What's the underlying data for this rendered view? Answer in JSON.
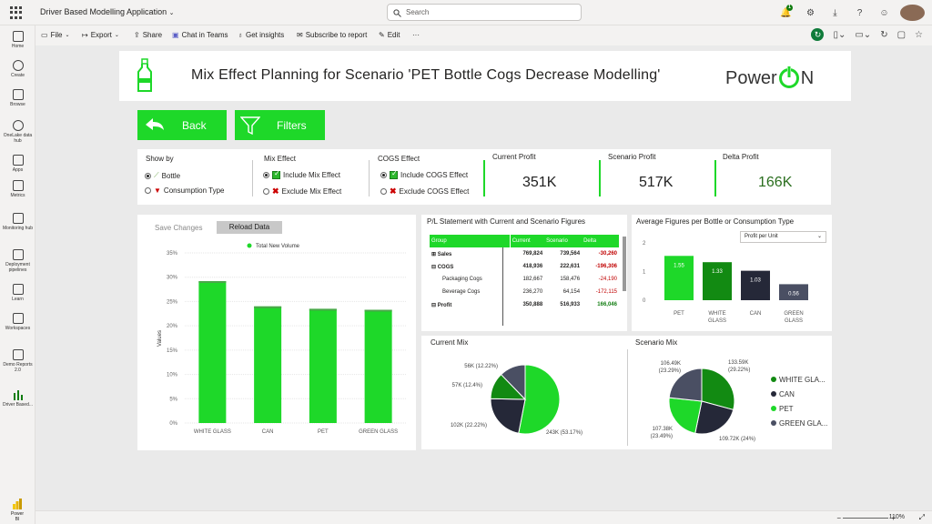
{
  "app": {
    "title": "Driver Based Modelling Application",
    "search_placeholder": "Search",
    "notification_count": "1"
  },
  "nav": [
    {
      "label": "Home",
      "icon": "home-icon"
    },
    {
      "label": "Create",
      "icon": "plus-circle-icon"
    },
    {
      "label": "Browse",
      "icon": "folder-icon"
    },
    {
      "label": "OneLake data hub",
      "icon": "onelake-icon"
    },
    {
      "label": "Apps",
      "icon": "apps-icon"
    },
    {
      "label": "Metrics",
      "icon": "trophy-icon"
    },
    {
      "label": "Monitoring hub",
      "icon": "monitor-icon"
    },
    {
      "label": "Deployment pipelines",
      "icon": "rocket-icon"
    },
    {
      "label": "Learn",
      "icon": "book-icon"
    },
    {
      "label": "Workspaces",
      "icon": "workspaces-icon"
    },
    {
      "label": "Demo Reports 2.0",
      "icon": "people-icon"
    },
    {
      "label": "Driver Based...",
      "icon": "report-icon"
    }
  ],
  "toolbar": {
    "file": "File",
    "export": "Export",
    "share": "Share",
    "chat": "Chat in Teams",
    "insights": "Get insights",
    "subscribe": "Subscribe to report",
    "edit": "Edit",
    "more": "···"
  },
  "report": {
    "title": "Mix Effect Planning for Scenario 'PET Bottle Cogs Decrease Modelling'",
    "logo_text": "Power",
    "logo_end": "N",
    "back_label": "Back",
    "filters_label": "Filters"
  },
  "filters": {
    "show_by": {
      "title": "Show by",
      "options": [
        "Bottle",
        "Consumption Type"
      ]
    },
    "mix_effect": {
      "title": "Mix Effect",
      "options": [
        "Include Mix Effect",
        "Exclude Mix Effect"
      ]
    },
    "cogs_effect": {
      "title": "COGS Effect",
      "options": [
        "Include COGS Effect",
        "Exclude COGS Effect"
      ]
    }
  },
  "kpis": {
    "current": {
      "label": "Current Profit",
      "value": "351K"
    },
    "scenario": {
      "label": "Scenario Profit",
      "value": "517K"
    },
    "delta": {
      "label": "Delta Profit",
      "value": "166K"
    }
  },
  "volume_panel": {
    "save_label": "Save Changes",
    "reload_label": "Reload Data"
  },
  "pl_statement": {
    "title": "P/L Statement with Current and Scenario Figures",
    "headers": [
      "Group",
      "Current",
      "Scenario",
      "Delta"
    ],
    "rows": [
      {
        "group": "Sales",
        "current": "769,824",
        "scenario": "739,564",
        "delta": "-30,260",
        "bold": true,
        "expand": "⊞"
      },
      {
        "group": "COGS",
        "current": "418,936",
        "scenario": "222,631",
        "delta": "-196,306",
        "bold": true,
        "expand": "⊟"
      },
      {
        "group": "Packaging Cogs",
        "current": "182,667",
        "scenario": "158,476",
        "delta": "-24,190",
        "bold": false,
        "expand": ""
      },
      {
        "group": "Beverage Cogs",
        "current": "236,270",
        "scenario": "64,154",
        "delta": "-172,115",
        "bold": false,
        "expand": ""
      },
      {
        "group": "Profit",
        "current": "350,888",
        "scenario": "516,933",
        "delta": "166,046",
        "bold": true,
        "expand": "⊟"
      }
    ]
  },
  "avg_figures": {
    "title": "Average Figures per Bottle or Consumption Type",
    "dropdown": "Profit per Unit"
  },
  "current_mix": {
    "title": "Current Mix"
  },
  "scenario_mix": {
    "title": "Scenario Mix"
  },
  "status": {
    "zoom": "110%"
  },
  "colors": {
    "green": "#1ed829",
    "dark_green": "#128a12",
    "navy": "#252838",
    "slate": "#4a4f63"
  },
  "chart_data": [
    {
      "type": "bar",
      "title": "",
      "legend": [
        "Total New Volume"
      ],
      "categories": [
        "WHITE GLASS",
        "CAN",
        "PET",
        "GREEN GLASS"
      ],
      "series": [
        {
          "name": "Total New Volume",
          "values": [
            29.2,
            24.0,
            23.5,
            23.3
          ]
        }
      ],
      "ylabel": "Values",
      "yticks": [
        "0%",
        "5%",
        "10%",
        "15%",
        "20%",
        "25%",
        "30%",
        "35%"
      ],
      "ylim": [
        0,
        35
      ]
    },
    {
      "type": "bar",
      "categories": [
        "PET",
        "WHITE GLASS",
        "CAN",
        "GREEN GLASS"
      ],
      "values": [
        1.55,
        1.33,
        1.03,
        0.56
      ],
      "labels": [
        "1.55",
        "1.33",
        "1.03",
        "0.56"
      ],
      "yticks": [
        "0",
        "1",
        "2"
      ],
      "ylim": [
        0,
        2.1
      ]
    },
    {
      "type": "pie",
      "title": "Current Mix",
      "slices": [
        {
          "category": "PET",
          "value": 243,
          "label": "243K (53.17%)"
        },
        {
          "category": "CAN",
          "value": 102,
          "label": "102K (22.22%)"
        },
        {
          "category": "WHITE GLASS",
          "value": 57,
          "label": "57K (12.4%)"
        },
        {
          "category": "GREEN GLASS",
          "value": 56,
          "label": "56K (12.22%)"
        }
      ]
    },
    {
      "type": "pie",
      "title": "Scenario Mix",
      "slices": [
        {
          "category": "WHITE GLASS",
          "value": 133.59,
          "label": "133.59K (29.22%)"
        },
        {
          "category": "CAN",
          "value": 109.72,
          "label": "109.72K (24%)"
        },
        {
          "category": "PET",
          "value": 107.38,
          "label": "107.38K (23.49%)"
        },
        {
          "category": "GREEN GLASS",
          "value": 106.49,
          "label": "106.49K (23.29%)"
        }
      ],
      "legend": [
        "WHITE GLA...",
        "CAN",
        "PET",
        "GREEN GLA..."
      ]
    }
  ]
}
